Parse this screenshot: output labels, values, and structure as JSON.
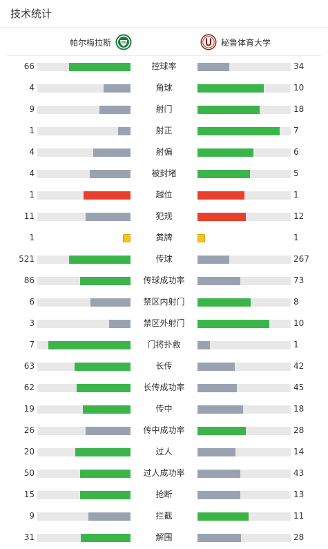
{
  "header": {
    "title": "技术统计"
  },
  "teams": {
    "home": {
      "name": "帕尔梅拉斯",
      "logo_icon": "palmeiras-crest-icon"
    },
    "away": {
      "name": "秘鲁体育大学",
      "logo_icon": "universitario-crest-icon"
    }
  },
  "colors": {
    "leading": "#3bb54a",
    "trailing": "#9aa2b1",
    "red_card": "#e8402a",
    "yellow_card": "#f7c51a",
    "track": "#e8e8e8"
  },
  "stats": [
    {
      "label": "控球率",
      "home": "66",
      "away": "34",
      "home_fraction": 0.66,
      "away_fraction": 0.34,
      "home_color": "green",
      "away_color": "gray"
    },
    {
      "label": "角球",
      "home": "4",
      "away": "10",
      "home_fraction": 0.29,
      "away_fraction": 0.71,
      "home_color": "gray",
      "away_color": "green"
    },
    {
      "label": "射门",
      "home": "9",
      "away": "18",
      "home_fraction": 0.33,
      "away_fraction": 0.67,
      "home_color": "gray",
      "away_color": "green"
    },
    {
      "label": "射正",
      "home": "1",
      "away": "7",
      "home_fraction": 0.13,
      "away_fraction": 0.88,
      "home_color": "gray",
      "away_color": "green"
    },
    {
      "label": "射偏",
      "home": "4",
      "away": "6",
      "home_fraction": 0.4,
      "away_fraction": 0.6,
      "home_color": "gray",
      "away_color": "green"
    },
    {
      "label": "被封堵",
      "home": "4",
      "away": "5",
      "home_fraction": 0.44,
      "away_fraction": 0.56,
      "home_color": "gray",
      "away_color": "green"
    },
    {
      "label": "越位",
      "home": "1",
      "away": "1",
      "home_fraction": 0.5,
      "away_fraction": 0.5,
      "home_color": "red",
      "away_color": "red"
    },
    {
      "label": "犯规",
      "home": "11",
      "away": "12",
      "home_fraction": 0.48,
      "away_fraction": 0.52,
      "home_color": "gray",
      "away_color": "red"
    },
    {
      "label": "黄牌",
      "home": "1",
      "away": "1",
      "type": "card",
      "home_color": "yellow",
      "away_color": "yellow"
    },
    {
      "label": "传球",
      "home": "521",
      "away": "267",
      "home_fraction": 0.66,
      "away_fraction": 0.34,
      "home_color": "green",
      "away_color": "gray"
    },
    {
      "label": "传球成功率",
      "home": "86",
      "away": "73",
      "home_fraction": 0.54,
      "away_fraction": 0.46,
      "home_color": "green",
      "away_color": "gray"
    },
    {
      "label": "禁区内射门",
      "home": "6",
      "away": "8",
      "home_fraction": 0.43,
      "away_fraction": 0.57,
      "home_color": "gray",
      "away_color": "green"
    },
    {
      "label": "禁区外射门",
      "home": "3",
      "away": "10",
      "home_fraction": 0.23,
      "away_fraction": 0.77,
      "home_color": "gray",
      "away_color": "green"
    },
    {
      "label": "门将扑救",
      "home": "7",
      "away": "1",
      "home_fraction": 0.88,
      "away_fraction": 0.13,
      "home_color": "green",
      "away_color": "gray"
    },
    {
      "label": "长传",
      "home": "63",
      "away": "42",
      "home_fraction": 0.6,
      "away_fraction": 0.4,
      "home_color": "green",
      "away_color": "gray"
    },
    {
      "label": "长传成功率",
      "home": "62",
      "away": "45",
      "home_fraction": 0.58,
      "away_fraction": 0.42,
      "home_color": "green",
      "away_color": "gray"
    },
    {
      "label": "传中",
      "home": "19",
      "away": "18",
      "home_fraction": 0.51,
      "away_fraction": 0.49,
      "home_color": "green",
      "away_color": "gray"
    },
    {
      "label": "传中成功率",
      "home": "26",
      "away": "28",
      "home_fraction": 0.48,
      "away_fraction": 0.52,
      "home_color": "gray",
      "away_color": "green"
    },
    {
      "label": "过人",
      "home": "20",
      "away": "14",
      "home_fraction": 0.59,
      "away_fraction": 0.41,
      "home_color": "green",
      "away_color": "gray"
    },
    {
      "label": "过人成功率",
      "home": "50",
      "away": "43",
      "home_fraction": 0.54,
      "away_fraction": 0.46,
      "home_color": "green",
      "away_color": "gray"
    },
    {
      "label": "抢断",
      "home": "15",
      "away": "13",
      "home_fraction": 0.54,
      "away_fraction": 0.46,
      "home_color": "green",
      "away_color": "gray"
    },
    {
      "label": "拦截",
      "home": "9",
      "away": "11",
      "home_fraction": 0.45,
      "away_fraction": 0.55,
      "home_color": "gray",
      "away_color": "green"
    },
    {
      "label": "解围",
      "home": "31",
      "away": "28",
      "home_fraction": 0.53,
      "away_fraction": 0.47,
      "home_color": "green",
      "away_color": "gray"
    }
  ]
}
